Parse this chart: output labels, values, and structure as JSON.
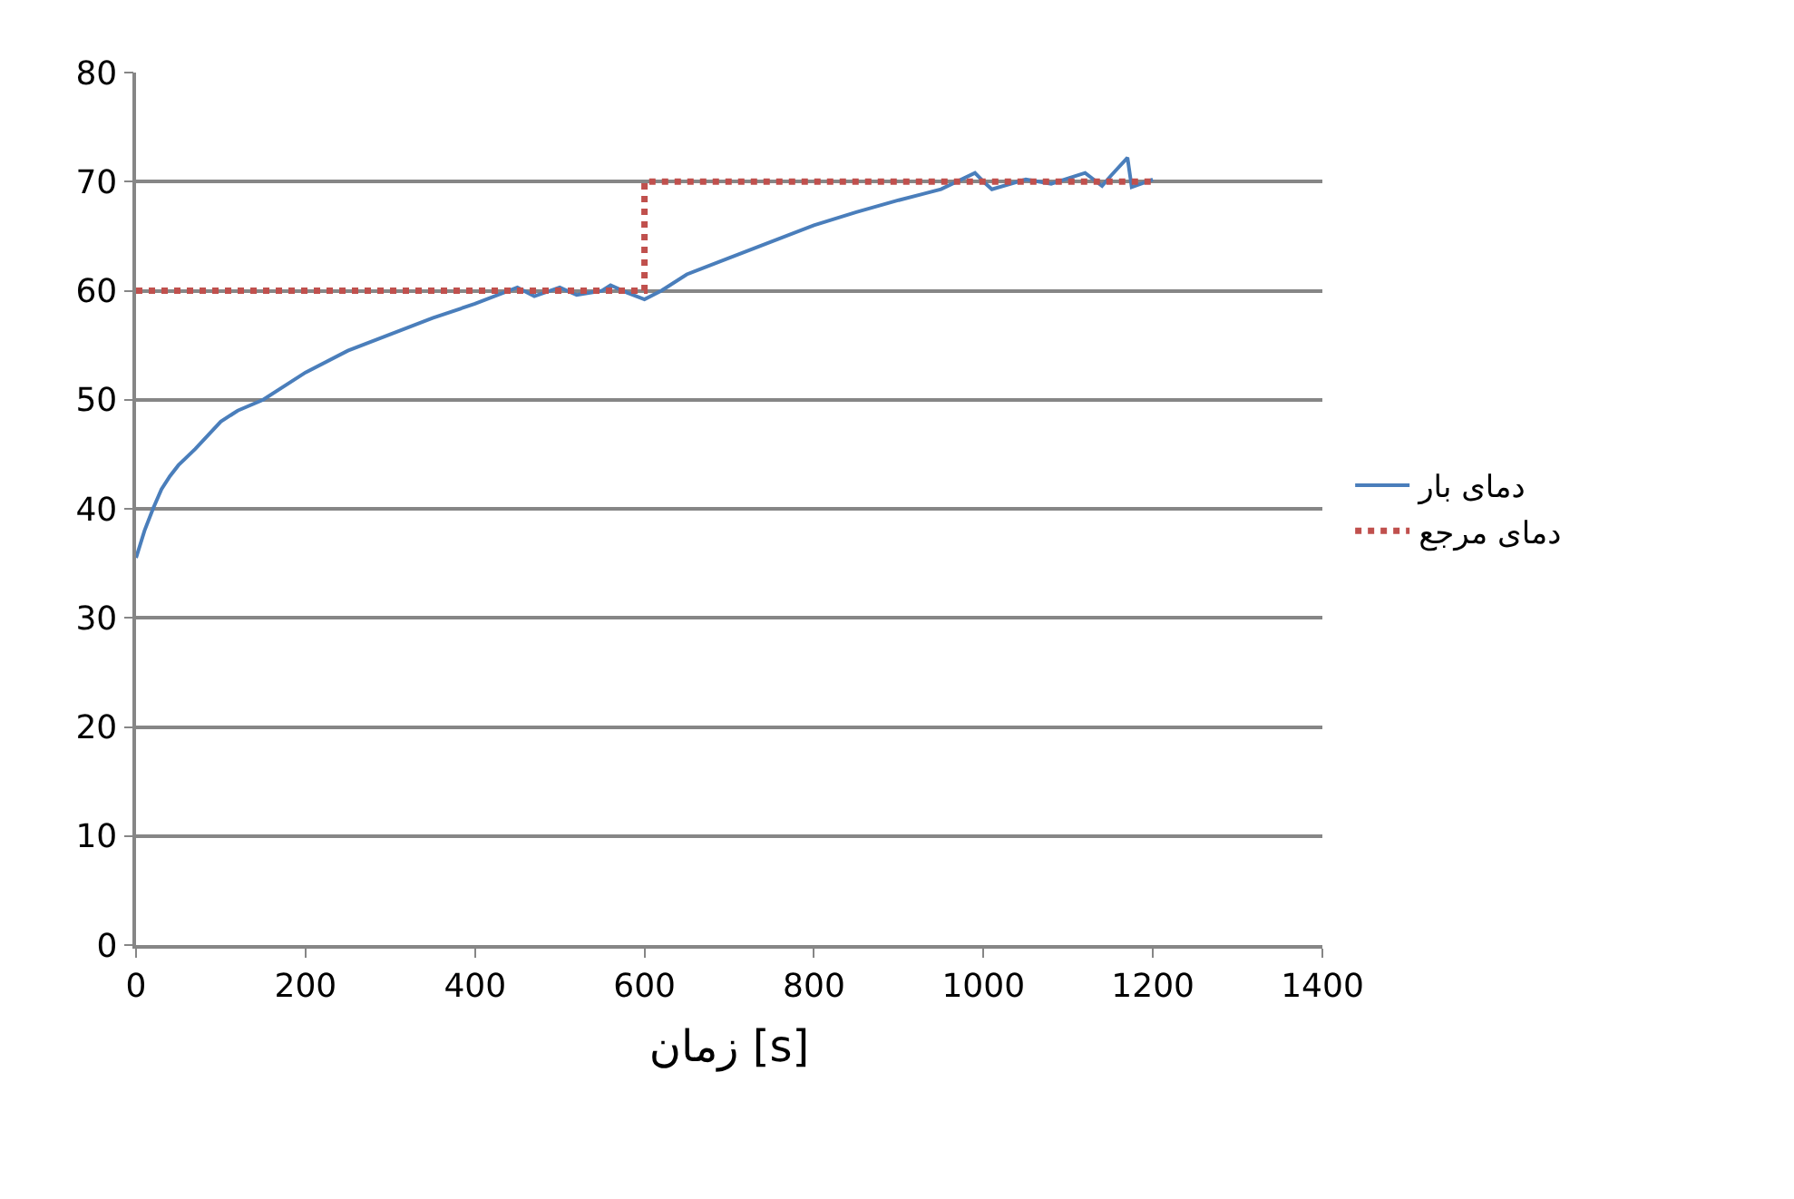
{
  "chart_data": {
    "type": "line",
    "xlabel": "زمان [s]",
    "xlim": [
      0,
      1400
    ],
    "xticks": [
      0,
      200,
      400,
      600,
      800,
      1000,
      1200,
      1400
    ],
    "ylim": [
      0,
      80
    ],
    "yticks": [
      0,
      10,
      20,
      30,
      40,
      50,
      60,
      70,
      80
    ],
    "grid": "y",
    "legend": "right",
    "series": [
      {
        "name": "دمای بار",
        "color": "#4a7ebb",
        "line_style": "solid",
        "x": [
          0,
          10,
          20,
          30,
          40,
          50,
          70,
          100,
          120,
          150,
          200,
          250,
          300,
          350,
          400,
          450,
          470,
          500,
          520,
          550,
          560,
          580,
          600,
          620,
          650,
          700,
          750,
          800,
          850,
          900,
          950,
          990,
          1000,
          1010,
          1050,
          1080,
          1100,
          1120,
          1140,
          1150,
          1170,
          1175,
          1200
        ],
        "values": [
          35.5,
          38,
          40,
          41.8,
          43,
          44,
          45.5,
          48,
          49,
          50,
          52.5,
          54.5,
          56,
          57.5,
          58.8,
          60.3,
          59.5,
          60.3,
          59.6,
          60,
          60.5,
          59.8,
          59.2,
          60,
          61.5,
          63,
          64.5,
          66,
          67.2,
          68.3,
          69.3,
          70.8,
          70,
          69.3,
          70.2,
          69.8,
          70.3,
          70.8,
          69.6,
          70.5,
          72.2,
          69.5,
          70.2
        ]
      },
      {
        "name": "دمای مرجع",
        "color": "#c0504d",
        "line_style": "dotted",
        "x": [
          0,
          600,
          600,
          1200
        ],
        "values": [
          60,
          60,
          70,
          70
        ]
      }
    ]
  }
}
